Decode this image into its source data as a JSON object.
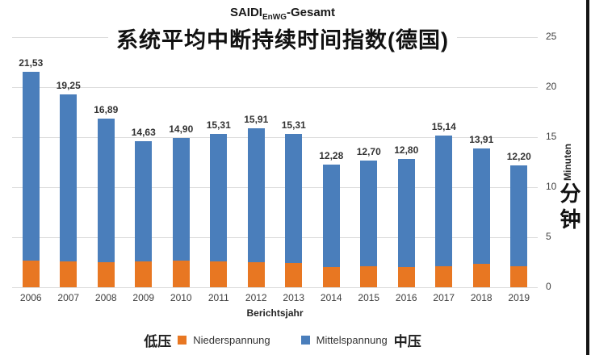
{
  "title": {
    "de_prefix": "SAIDI",
    "de_subscript": "EnWG",
    "de_suffix": "-Gesamt",
    "zh": "系统平均中断持续时间指数(德国)"
  },
  "axes": {
    "x_label": "Berichtsjahr",
    "y_label_de": "Minuten",
    "y_label_zh": "分钟",
    "y_ticks": [
      0,
      5,
      10,
      15,
      20,
      25
    ]
  },
  "legend": {
    "low_voltage_zh": "低压",
    "low_voltage_de": "Niederspannung",
    "medium_voltage_de": "Mittelspannung",
    "medium_voltage_zh": "中压"
  },
  "colors": {
    "niederspannung": "#E87722",
    "mittelspannung": "#4A7EBB",
    "gridline": "#DCDCDC",
    "label_text": "#333333"
  },
  "chart_data": {
    "type": "bar",
    "stacked": true,
    "title": "SAIDI EnWG-Gesamt — 系统平均中断持续时间指数(德国)",
    "xlabel": "Berichtsjahr",
    "ylabel": "Minuten / 分钟",
    "ylim": [
      0,
      25
    ],
    "y_tick_step": 5,
    "y_axis_side": "right",
    "grid": true,
    "legend_position": "bottom",
    "categories": [
      "2006",
      "2007",
      "2008",
      "2009",
      "2010",
      "2011",
      "2012",
      "2013",
      "2014",
      "2015",
      "2016",
      "2017",
      "2018",
      "2019"
    ],
    "totals": [
      21.53,
      19.25,
      16.89,
      14.63,
      14.9,
      15.31,
      15.91,
      15.31,
      12.28,
      12.7,
      12.8,
      15.14,
      13.91,
      12.2
    ],
    "total_labels": [
      "21,53",
      "19,25",
      "16,89",
      "14,63",
      "14,90",
      "15,31",
      "15,91",
      "15,31",
      "12,28",
      "12,70",
      "12,80",
      "15,14",
      "13,91",
      "12,20"
    ],
    "series": [
      {
        "name": "Niederspannung",
        "color": "#E87722",
        "estimated": true,
        "values": [
          2.7,
          2.6,
          2.5,
          2.6,
          2.7,
          2.6,
          2.5,
          2.4,
          2.0,
          2.1,
          2.0,
          2.1,
          2.3,
          2.1
        ]
      },
      {
        "name": "Mittelspannung",
        "color": "#4A7EBB",
        "estimated": true,
        "values": [
          18.83,
          16.65,
          14.39,
          12.03,
          12.2,
          12.71,
          13.41,
          12.91,
          10.28,
          10.6,
          10.8,
          13.04,
          11.61,
          10.1
        ]
      }
    ]
  }
}
